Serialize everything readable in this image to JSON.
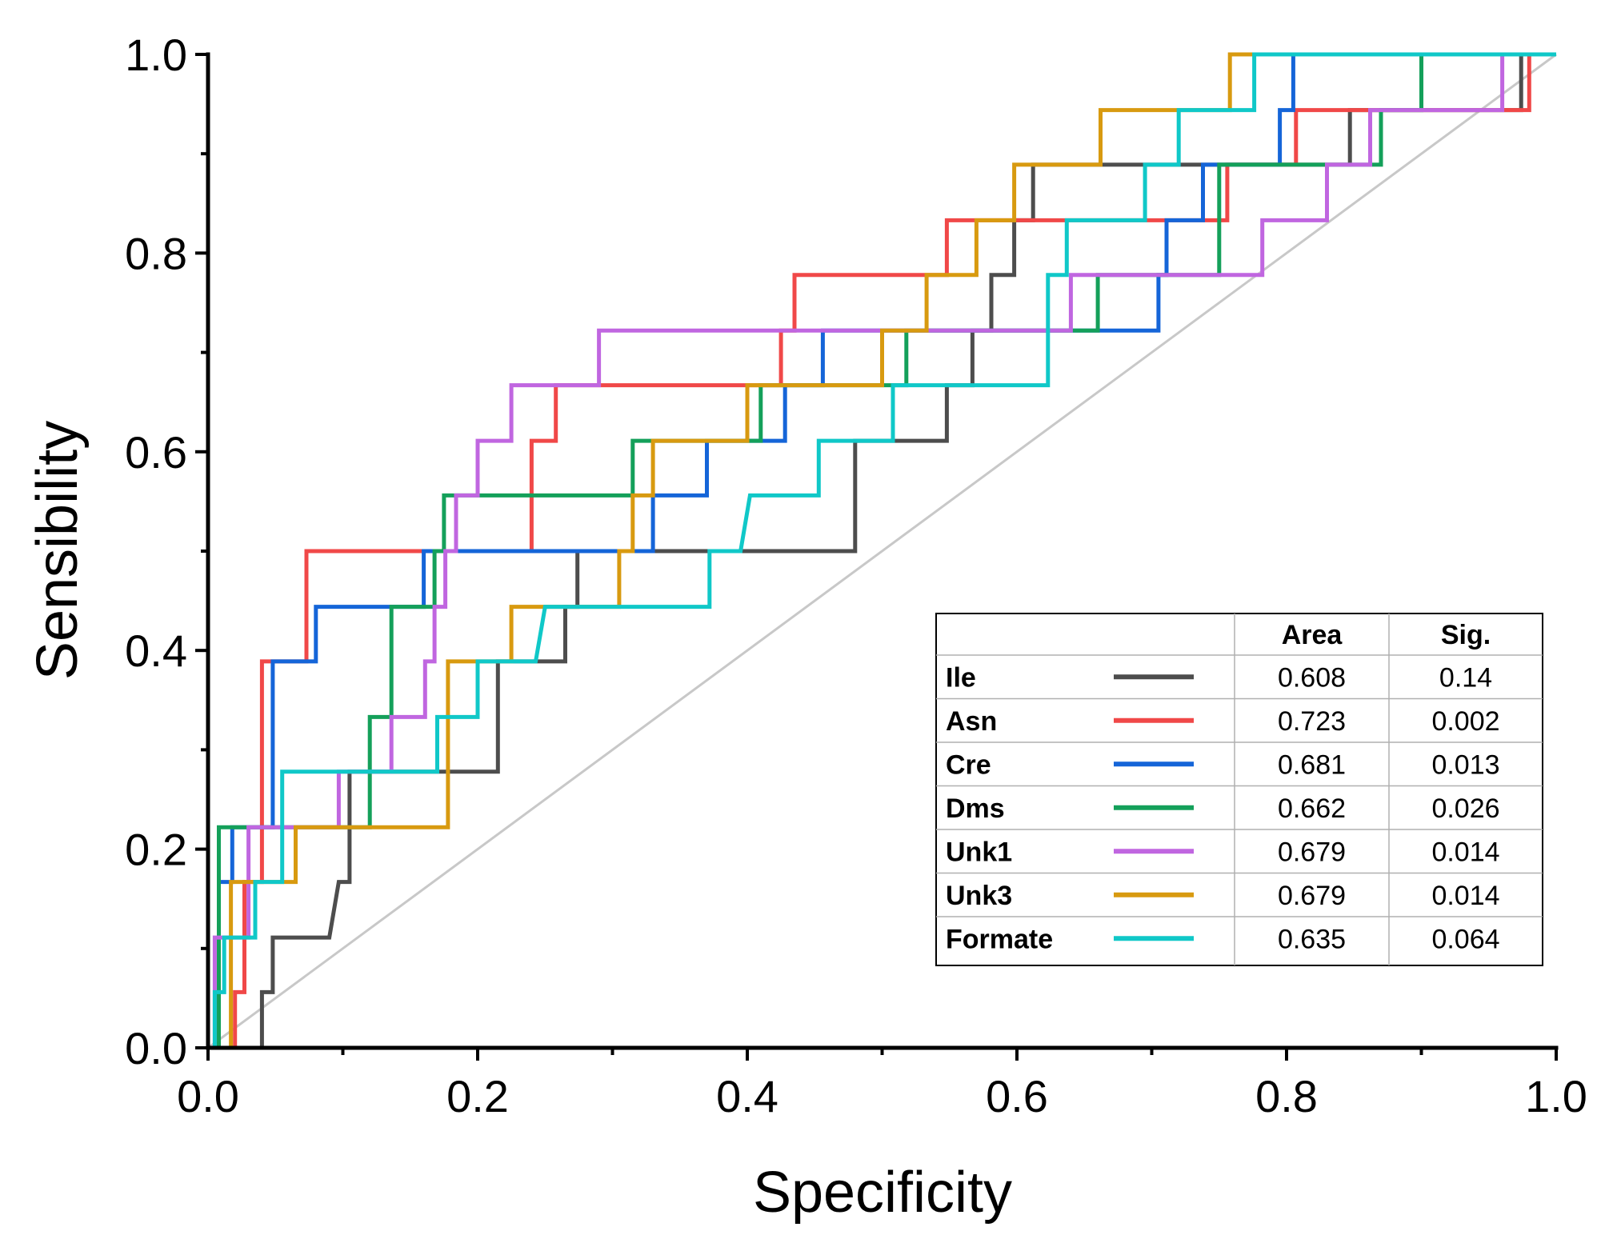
{
  "chart_data": {
    "type": "line",
    "title": "",
    "xlabel": "Specificity",
    "ylabel": "Sensibility",
    "xlim": [
      0.0,
      1.0
    ],
    "ylim": [
      0.0,
      1.0
    ],
    "x_ticks": [
      "0.0",
      "0.2",
      "0.4",
      "0.6",
      "0.8",
      "1.0"
    ],
    "y_ticks": [
      "0.0",
      "0.2",
      "0.4",
      "0.6",
      "0.8",
      "1.0"
    ],
    "grid": false,
    "legend_position": "bottom-right",
    "reference_line": {
      "from": [
        0.0,
        0.0
      ],
      "to": [
        1.0,
        1.0
      ],
      "color": "#c8c8c8"
    },
    "legend_headers": {
      "area": "Area",
      "sig": "Sig."
    },
    "series": [
      {
        "name": "Ile",
        "color": "#4d4d4d",
        "area": "0.608",
        "sig": "0.14",
        "points": [
          [
            0.0,
            0.0
          ],
          [
            0.04,
            0.0
          ],
          [
            0.04,
            0.056
          ],
          [
            0.048,
            0.056
          ],
          [
            0.048,
            0.111
          ],
          [
            0.09,
            0.111
          ],
          [
            0.097,
            0.167
          ],
          [
            0.105,
            0.167
          ],
          [
            0.105,
            0.222
          ],
          [
            0.105,
            0.278
          ],
          [
            0.215,
            0.278
          ],
          [
            0.215,
            0.389
          ],
          [
            0.265,
            0.389
          ],
          [
            0.265,
            0.444
          ],
          [
            0.274,
            0.444
          ],
          [
            0.274,
            0.5
          ],
          [
            0.48,
            0.5
          ],
          [
            0.48,
            0.611
          ],
          [
            0.548,
            0.611
          ],
          [
            0.548,
            0.667
          ],
          [
            0.567,
            0.667
          ],
          [
            0.567,
            0.722
          ],
          [
            0.581,
            0.722
          ],
          [
            0.581,
            0.778
          ],
          [
            0.598,
            0.778
          ],
          [
            0.598,
            0.833
          ],
          [
            0.612,
            0.833
          ],
          [
            0.612,
            0.889
          ],
          [
            0.847,
            0.889
          ],
          [
            0.847,
            0.944
          ],
          [
            0.974,
            0.944
          ],
          [
            0.974,
            1.0
          ],
          [
            1.0,
            1.0
          ]
        ]
      },
      {
        "name": "Asn",
        "color": "#f04848",
        "area": "0.723",
        "sig": "0.002",
        "points": [
          [
            0.0,
            0.0
          ],
          [
            0.02,
            0.0
          ],
          [
            0.02,
            0.056
          ],
          [
            0.027,
            0.056
          ],
          [
            0.027,
            0.167
          ],
          [
            0.04,
            0.167
          ],
          [
            0.04,
            0.389
          ],
          [
            0.073,
            0.389
          ],
          [
            0.073,
            0.5
          ],
          [
            0.24,
            0.5
          ],
          [
            0.24,
            0.556
          ],
          [
            0.24,
            0.611
          ],
          [
            0.258,
            0.611
          ],
          [
            0.258,
            0.667
          ],
          [
            0.425,
            0.667
          ],
          [
            0.425,
            0.722
          ],
          [
            0.435,
            0.722
          ],
          [
            0.435,
            0.778
          ],
          [
            0.548,
            0.778
          ],
          [
            0.548,
            0.833
          ],
          [
            0.756,
            0.833
          ],
          [
            0.756,
            0.889
          ],
          [
            0.807,
            0.889
          ],
          [
            0.807,
            0.944
          ],
          [
            0.98,
            0.944
          ],
          [
            0.98,
            1.0
          ],
          [
            1.0,
            1.0
          ]
        ]
      },
      {
        "name": "Cre",
        "color": "#1565d8",
        "area": "0.681",
        "sig": "0.013",
        "points": [
          [
            0.0,
            0.0
          ],
          [
            0.008,
            0.0
          ],
          [
            0.008,
            0.167
          ],
          [
            0.018,
            0.167
          ],
          [
            0.018,
            0.222
          ],
          [
            0.048,
            0.222
          ],
          [
            0.048,
            0.389
          ],
          [
            0.08,
            0.389
          ],
          [
            0.08,
            0.444
          ],
          [
            0.16,
            0.444
          ],
          [
            0.16,
            0.5
          ],
          [
            0.33,
            0.5
          ],
          [
            0.33,
            0.556
          ],
          [
            0.37,
            0.556
          ],
          [
            0.37,
            0.611
          ],
          [
            0.428,
            0.611
          ],
          [
            0.428,
            0.667
          ],
          [
            0.456,
            0.667
          ],
          [
            0.456,
            0.722
          ],
          [
            0.705,
            0.722
          ],
          [
            0.705,
            0.778
          ],
          [
            0.711,
            0.778
          ],
          [
            0.711,
            0.833
          ],
          [
            0.738,
            0.833
          ],
          [
            0.738,
            0.889
          ],
          [
            0.795,
            0.889
          ],
          [
            0.795,
            0.944
          ],
          [
            0.805,
            0.944
          ],
          [
            0.805,
            1.0
          ],
          [
            1.0,
            1.0
          ]
        ]
      },
      {
        "name": "Dms",
        "color": "#14a05a",
        "area": "0.662",
        "sig": "0.026",
        "points": [
          [
            0.0,
            0.0
          ],
          [
            0.008,
            0.0
          ],
          [
            0.008,
            0.222
          ],
          [
            0.12,
            0.222
          ],
          [
            0.12,
            0.333
          ],
          [
            0.136,
            0.333
          ],
          [
            0.136,
            0.444
          ],
          [
            0.168,
            0.444
          ],
          [
            0.168,
            0.5
          ],
          [
            0.175,
            0.5
          ],
          [
            0.175,
            0.556
          ],
          [
            0.315,
            0.556
          ],
          [
            0.315,
            0.611
          ],
          [
            0.41,
            0.611
          ],
          [
            0.41,
            0.667
          ],
          [
            0.518,
            0.667
          ],
          [
            0.518,
            0.722
          ],
          [
            0.66,
            0.722
          ],
          [
            0.66,
            0.778
          ],
          [
            0.75,
            0.778
          ],
          [
            0.75,
            0.889
          ],
          [
            0.87,
            0.889
          ],
          [
            0.87,
            0.944
          ],
          [
            0.9,
            0.944
          ],
          [
            0.9,
            1.0
          ],
          [
            1.0,
            1.0
          ]
        ]
      },
      {
        "name": "Unk1",
        "color": "#c066e0",
        "area": "0.679",
        "sig": "0.014",
        "points": [
          [
            0.0,
            0.0
          ],
          [
            0.005,
            0.0
          ],
          [
            0.005,
            0.111
          ],
          [
            0.03,
            0.111
          ],
          [
            0.03,
            0.222
          ],
          [
            0.097,
            0.222
          ],
          [
            0.097,
            0.278
          ],
          [
            0.136,
            0.278
          ],
          [
            0.136,
            0.333
          ],
          [
            0.161,
            0.333
          ],
          [
            0.161,
            0.389
          ],
          [
            0.168,
            0.389
          ],
          [
            0.168,
            0.444
          ],
          [
            0.176,
            0.444
          ],
          [
            0.176,
            0.5
          ],
          [
            0.184,
            0.5
          ],
          [
            0.184,
            0.556
          ],
          [
            0.2,
            0.556
          ],
          [
            0.2,
            0.611
          ],
          [
            0.225,
            0.611
          ],
          [
            0.225,
            0.667
          ],
          [
            0.29,
            0.667
          ],
          [
            0.29,
            0.722
          ],
          [
            0.64,
            0.722
          ],
          [
            0.64,
            0.778
          ],
          [
            0.782,
            0.778
          ],
          [
            0.782,
            0.833
          ],
          [
            0.83,
            0.833
          ],
          [
            0.83,
            0.889
          ],
          [
            0.862,
            0.889
          ],
          [
            0.862,
            0.944
          ],
          [
            0.96,
            0.944
          ],
          [
            0.96,
            1.0
          ],
          [
            1.0,
            1.0
          ]
        ]
      },
      {
        "name": "Unk3",
        "color": "#d89a10",
        "area": "0.679",
        "sig": "0.014",
        "points": [
          [
            0.0,
            0.0
          ],
          [
            0.017,
            0.0
          ],
          [
            0.017,
            0.167
          ],
          [
            0.065,
            0.167
          ],
          [
            0.065,
            0.222
          ],
          [
            0.178,
            0.222
          ],
          [
            0.178,
            0.389
          ],
          [
            0.225,
            0.389
          ],
          [
            0.225,
            0.444
          ],
          [
            0.305,
            0.444
          ],
          [
            0.305,
            0.5
          ],
          [
            0.315,
            0.5
          ],
          [
            0.315,
            0.556
          ],
          [
            0.33,
            0.556
          ],
          [
            0.33,
            0.611
          ],
          [
            0.4,
            0.611
          ],
          [
            0.4,
            0.667
          ],
          [
            0.5,
            0.667
          ],
          [
            0.5,
            0.722
          ],
          [
            0.533,
            0.722
          ],
          [
            0.533,
            0.778
          ],
          [
            0.57,
            0.778
          ],
          [
            0.57,
            0.833
          ],
          [
            0.598,
            0.833
          ],
          [
            0.598,
            0.889
          ],
          [
            0.662,
            0.889
          ],
          [
            0.662,
            0.944
          ],
          [
            0.758,
            0.944
          ],
          [
            0.758,
            1.0
          ],
          [
            1.0,
            1.0
          ]
        ]
      },
      {
        "name": "Formate",
        "color": "#10c8c8",
        "area": "0.635",
        "sig": "0.064",
        "points": [
          [
            0.0,
            0.0
          ],
          [
            0.005,
            0.0
          ],
          [
            0.005,
            0.056
          ],
          [
            0.012,
            0.056
          ],
          [
            0.012,
            0.111
          ],
          [
            0.035,
            0.111
          ],
          [
            0.035,
            0.167
          ],
          [
            0.055,
            0.167
          ],
          [
            0.055,
            0.278
          ],
          [
            0.17,
            0.278
          ],
          [
            0.17,
            0.333
          ],
          [
            0.2,
            0.333
          ],
          [
            0.2,
            0.389
          ],
          [
            0.243,
            0.389
          ],
          [
            0.25,
            0.444
          ],
          [
            0.372,
            0.444
          ],
          [
            0.372,
            0.5
          ],
          [
            0.395,
            0.5
          ],
          [
            0.402,
            0.556
          ],
          [
            0.453,
            0.556
          ],
          [
            0.453,
            0.611
          ],
          [
            0.508,
            0.611
          ],
          [
            0.508,
            0.667
          ],
          [
            0.623,
            0.667
          ],
          [
            0.623,
            0.778
          ],
          [
            0.637,
            0.778
          ],
          [
            0.637,
            0.833
          ],
          [
            0.695,
            0.833
          ],
          [
            0.695,
            0.889
          ],
          [
            0.72,
            0.889
          ],
          [
            0.72,
            0.944
          ],
          [
            0.776,
            0.944
          ],
          [
            0.776,
            1.0
          ],
          [
            1.0,
            1.0
          ]
        ]
      }
    ]
  }
}
